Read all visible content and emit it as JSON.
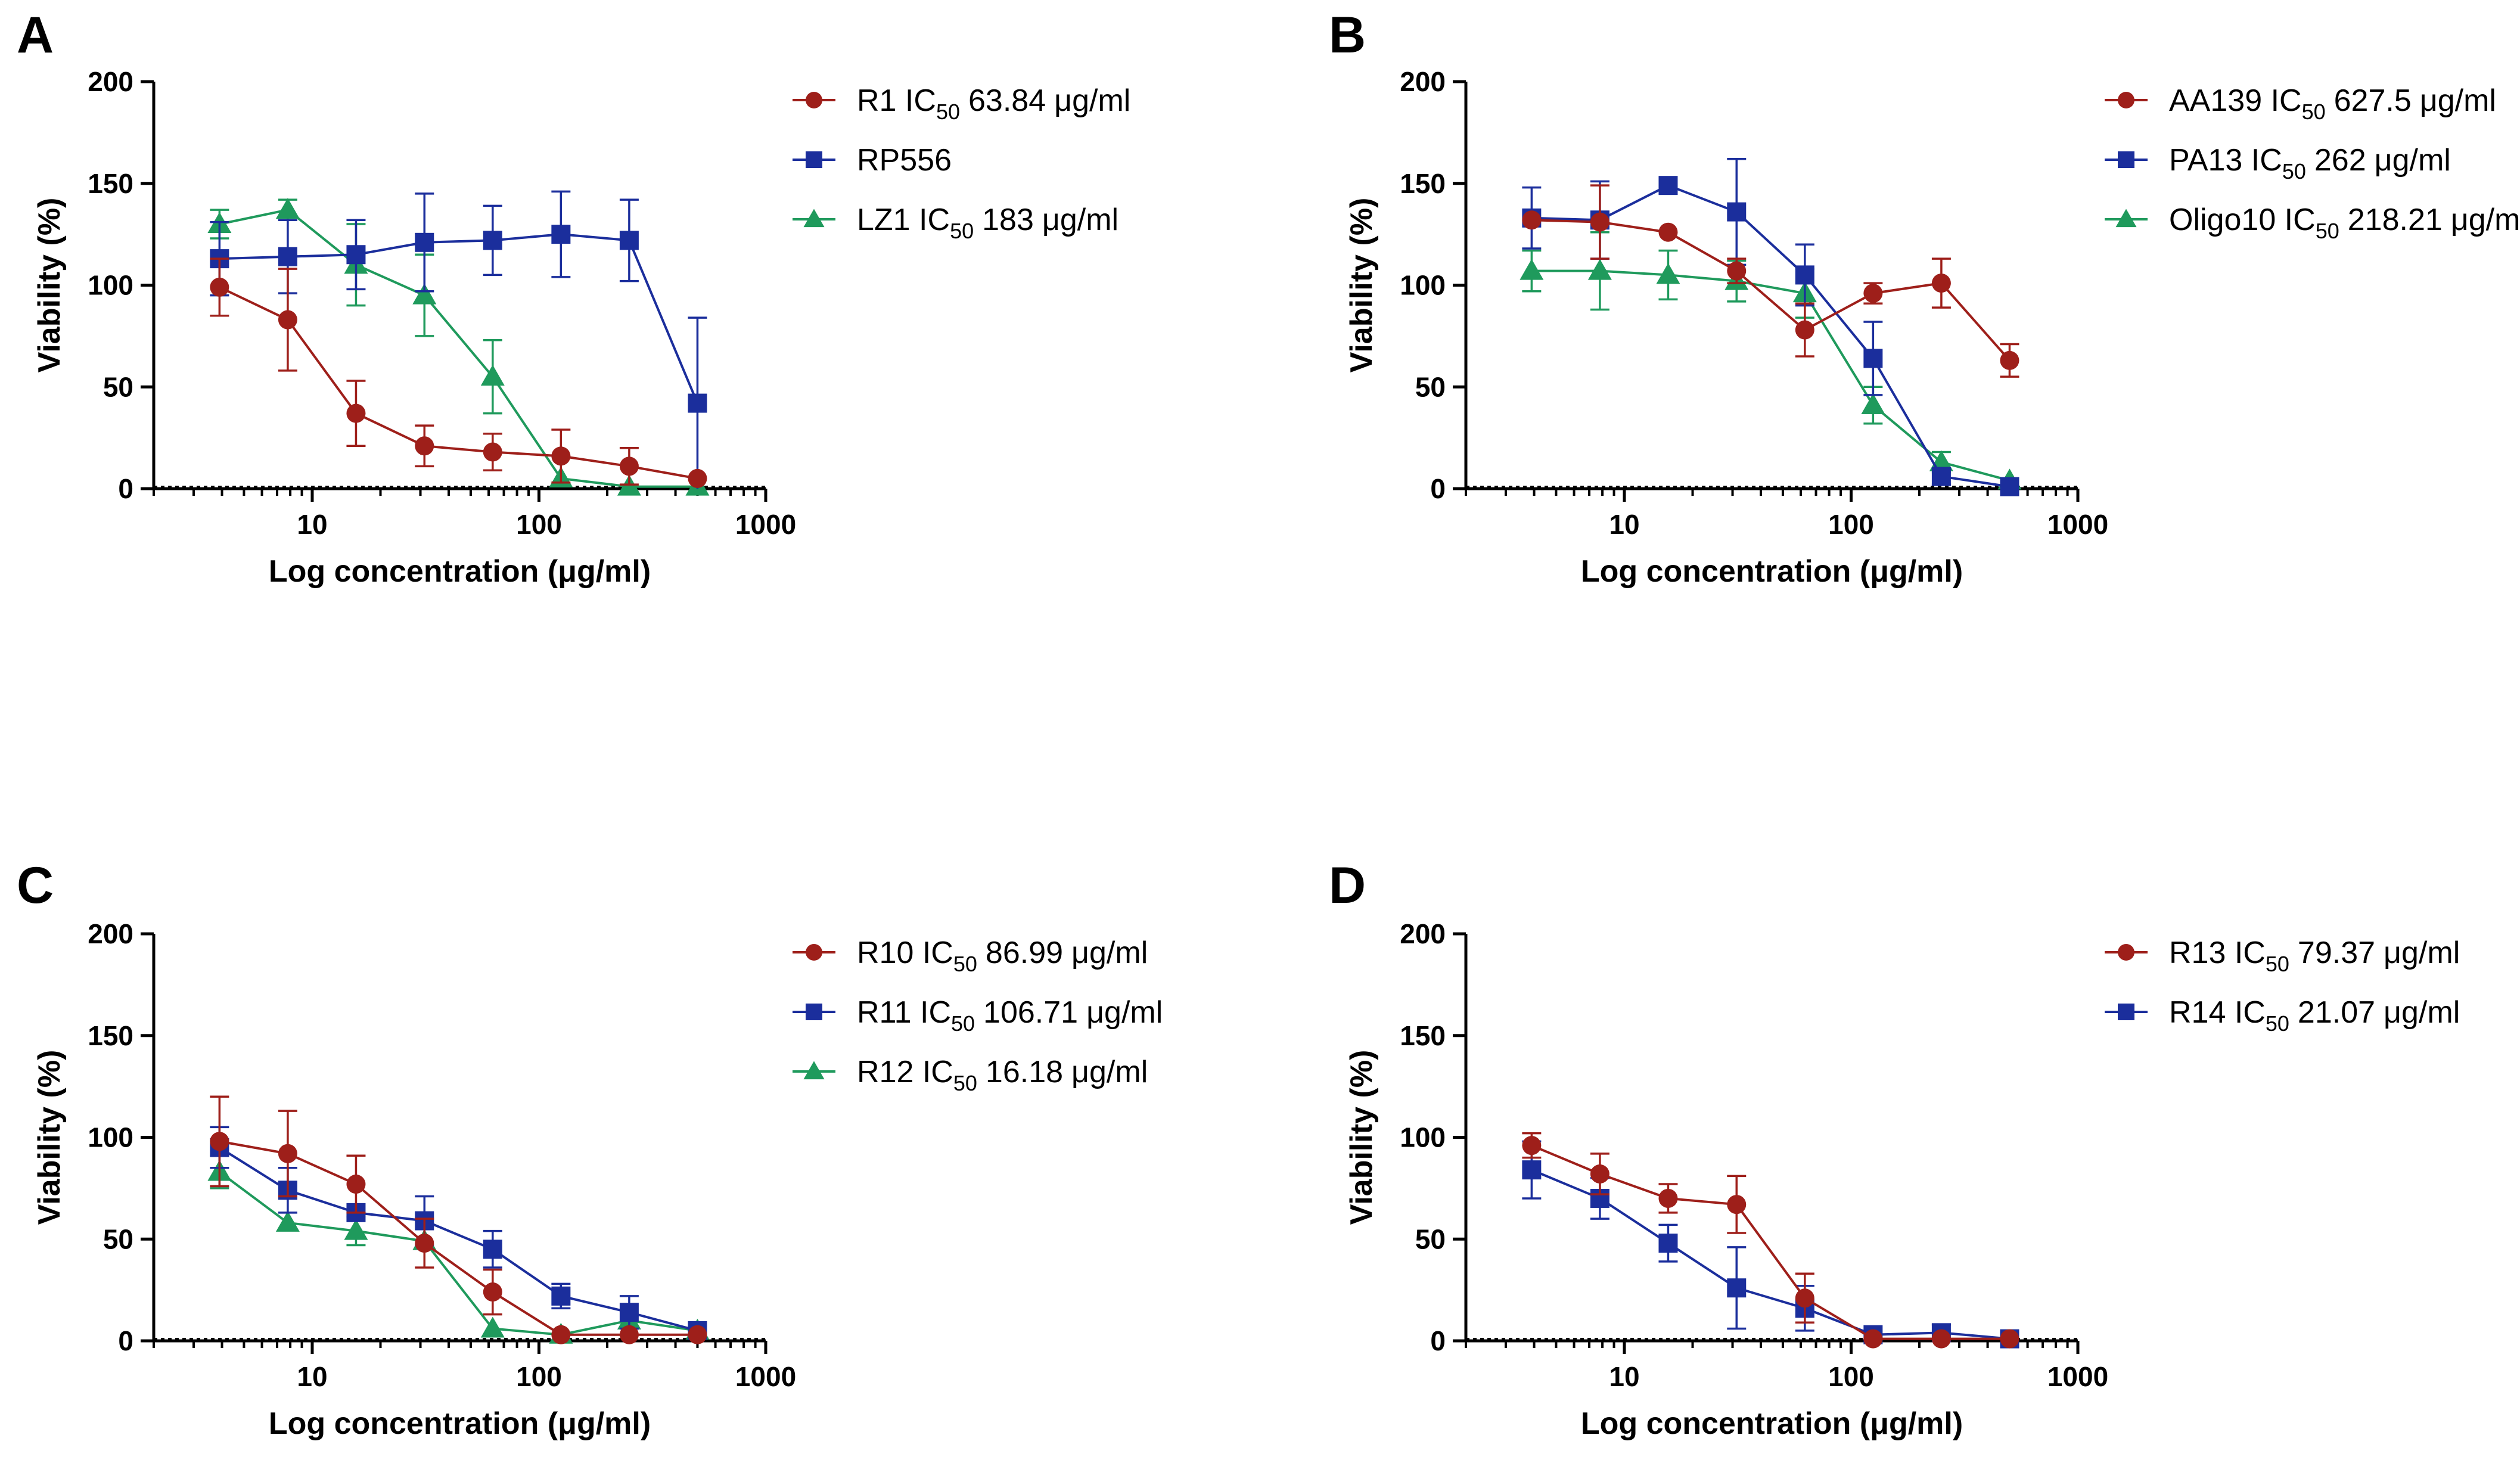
{
  "chart_data": [
    {
      "panel": "A",
      "type": "line",
      "xscale": "log",
      "xlabel": "Log concentration (μg/ml)",
      "ylabel": "Viability (%)",
      "xlim": [
        2,
        1000
      ],
      "ylim": [
        0,
        200
      ],
      "xticks": [
        "10",
        "100",
        "1000"
      ],
      "yticks": [
        "0",
        "50",
        "100",
        "150",
        "200"
      ],
      "reference_line": 0,
      "legend_placement": "top-right",
      "series": [
        {
          "name": "R1",
          "legend_label": "R1",
          "ic50": "63.84",
          "unit": "μg/ml",
          "color": "#9e1f1a",
          "marker": "circle",
          "x": [
            3.9,
            7.8,
            15.6,
            31.25,
            62.5,
            125,
            250,
            500
          ],
          "y": [
            99,
            83,
            37,
            21,
            18,
            16,
            11,
            5
          ],
          "err": [
            14,
            25,
            16,
            10,
            9,
            13,
            9,
            0
          ]
        },
        {
          "name": "RP556",
          "legend_label": "RP556",
          "ic50": "",
          "unit": "",
          "color": "#1b2e9c",
          "marker": "square",
          "x": [
            3.9,
            7.8,
            15.6,
            31.25,
            62.5,
            125,
            250,
            500
          ],
          "y": [
            113,
            114,
            115,
            121,
            122,
            125,
            122,
            42
          ],
          "err": [
            18,
            18,
            17,
            24,
            17,
            21,
            20,
            42
          ]
        },
        {
          "name": "LZ1",
          "legend_label": "LZ1",
          "ic50": "183",
          "unit": "μg/ml",
          "color": "#1f9a5c",
          "marker": "triangle",
          "x": [
            3.9,
            7.8,
            15.6,
            31.25,
            62.5,
            125,
            250,
            500
          ],
          "y": [
            130,
            137,
            110,
            95,
            55,
            5,
            1,
            1
          ],
          "err": [
            7,
            5,
            20,
            20,
            18,
            0,
            0,
            0
          ]
        }
      ]
    },
    {
      "panel": "B",
      "type": "line",
      "xscale": "log",
      "xlabel": "Log concentration (μg/ml)",
      "ylabel": "Viability (%)",
      "xlim": [
        2,
        1000
      ],
      "ylim": [
        0,
        200
      ],
      "xticks": [
        "10",
        "100",
        "1000"
      ],
      "yticks": [
        "0",
        "50",
        "100",
        "150",
        "200"
      ],
      "reference_line": 0,
      "legend_placement": "top-right",
      "series": [
        {
          "name": "AA139",
          "legend_label": "AA139",
          "ic50": "627.5",
          "unit": "μg/ml",
          "color": "#9e1f1a",
          "marker": "circle",
          "x": [
            3.9,
            7.8,
            15.6,
            31.25,
            62.5,
            125,
            250,
            500
          ],
          "y": [
            132,
            131,
            126,
            107,
            78,
            96,
            101,
            63
          ],
          "err": [
            0,
            18,
            0,
            6,
            13,
            5,
            12,
            8
          ]
        },
        {
          "name": "PA13",
          "legend_label": "PA13",
          "ic50": "262",
          "unit": "μg/ml",
          "color": "#1b2e9c",
          "marker": "square",
          "x": [
            3.9,
            7.8,
            15.6,
            31.25,
            62.5,
            125,
            250,
            500
          ],
          "y": [
            133,
            132,
            149,
            136,
            105,
            64,
            6,
            1
          ],
          "err": [
            15,
            19,
            0,
            26,
            15,
            18,
            4,
            0
          ]
        },
        {
          "name": "Oligo10",
          "legend_label": "Oligo10",
          "ic50": "218.21",
          "unit": "μg/ml",
          "color": "#1f9a5c",
          "marker": "triangle",
          "x": [
            3.9,
            7.8,
            15.6,
            31.25,
            62.5,
            125,
            250,
            500
          ],
          "y": [
            107,
            107,
            105,
            102,
            96,
            41,
            13,
            4
          ],
          "err": [
            10,
            19,
            12,
            10,
            12,
            9,
            5,
            0
          ]
        }
      ]
    },
    {
      "panel": "C",
      "type": "line",
      "xscale": "log",
      "xlabel": "Log concentration (μg/ml)",
      "ylabel": "Viability (%)",
      "xlim": [
        2,
        1000
      ],
      "ylim": [
        0,
        200
      ],
      "xticks": [
        "10",
        "100",
        "1000"
      ],
      "yticks": [
        "0",
        "50",
        "100",
        "150",
        "200"
      ],
      "reference_line": 0,
      "legend_placement": "top-right",
      "series": [
        {
          "name": "R10",
          "legend_label": "R10",
          "ic50": "86.99",
          "unit": "μg/ml",
          "color": "#9e1f1a",
          "marker": "circle",
          "x": [
            3.9,
            7.8,
            15.6,
            31.25,
            62.5,
            125,
            250,
            500
          ],
          "y": [
            98,
            92,
            77,
            48,
            24,
            3,
            3,
            3
          ],
          "err": [
            22,
            21,
            14,
            12,
            11,
            0,
            0,
            0
          ]
        },
        {
          "name": "R11",
          "legend_label": "R11",
          "ic50": "106.71",
          "unit": "μg/ml",
          "color": "#1b2e9c",
          "marker": "square",
          "x": [
            3.9,
            7.8,
            15.6,
            31.25,
            62.5,
            125,
            250,
            500
          ],
          "y": [
            95,
            74,
            63,
            59,
            45,
            22,
            14,
            5
          ],
          "err": [
            10,
            11,
            0,
            12,
            9,
            6,
            8,
            0
          ]
        },
        {
          "name": "R12",
          "legend_label": "R12",
          "ic50": "16.18",
          "unit": "μg/ml",
          "color": "#1f9a5c",
          "marker": "triangle",
          "x": [
            3.9,
            7.8,
            15.6,
            31.25,
            62.5,
            125,
            250,
            500
          ],
          "y": [
            83,
            58,
            54,
            49,
            6,
            3,
            10,
            5
          ],
          "err": [
            8,
            0,
            7,
            0,
            0,
            0,
            0,
            0
          ]
        }
      ]
    },
    {
      "panel": "D",
      "type": "line",
      "xscale": "log",
      "xlabel": "Log concentration (μg/ml)",
      "ylabel": "Viability (%)",
      "xlim": [
        2,
        1000
      ],
      "ylim": [
        0,
        200
      ],
      "xticks": [
        "10",
        "100",
        "1000"
      ],
      "yticks": [
        "0",
        "50",
        "100",
        "150",
        "200"
      ],
      "reference_line": 0,
      "legend_placement": "top-right",
      "series": [
        {
          "name": "R13",
          "legend_label": "R13",
          "ic50": "79.37",
          "unit": "μg/ml",
          "color": "#9e1f1a",
          "marker": "circle",
          "x": [
            3.9,
            7.8,
            15.6,
            31.25,
            62.5,
            125,
            250,
            500
          ],
          "y": [
            96,
            82,
            70,
            67,
            21,
            1,
            1,
            1
          ],
          "err": [
            6,
            10,
            7,
            14,
            12,
            0,
            0,
            0
          ]
        },
        {
          "name": "R14",
          "legend_label": "R14",
          "ic50": "21.07",
          "unit": "μg/ml",
          "color": "#1b2e9c",
          "marker": "square",
          "x": [
            3.9,
            7.8,
            15.6,
            31.25,
            62.5,
            125,
            250,
            500
          ],
          "y": [
            84,
            70,
            48,
            26,
            16,
            3,
            4,
            1
          ],
          "err": [
            14,
            10,
            9,
            20,
            11,
            0,
            4,
            0
          ]
        }
      ]
    }
  ]
}
